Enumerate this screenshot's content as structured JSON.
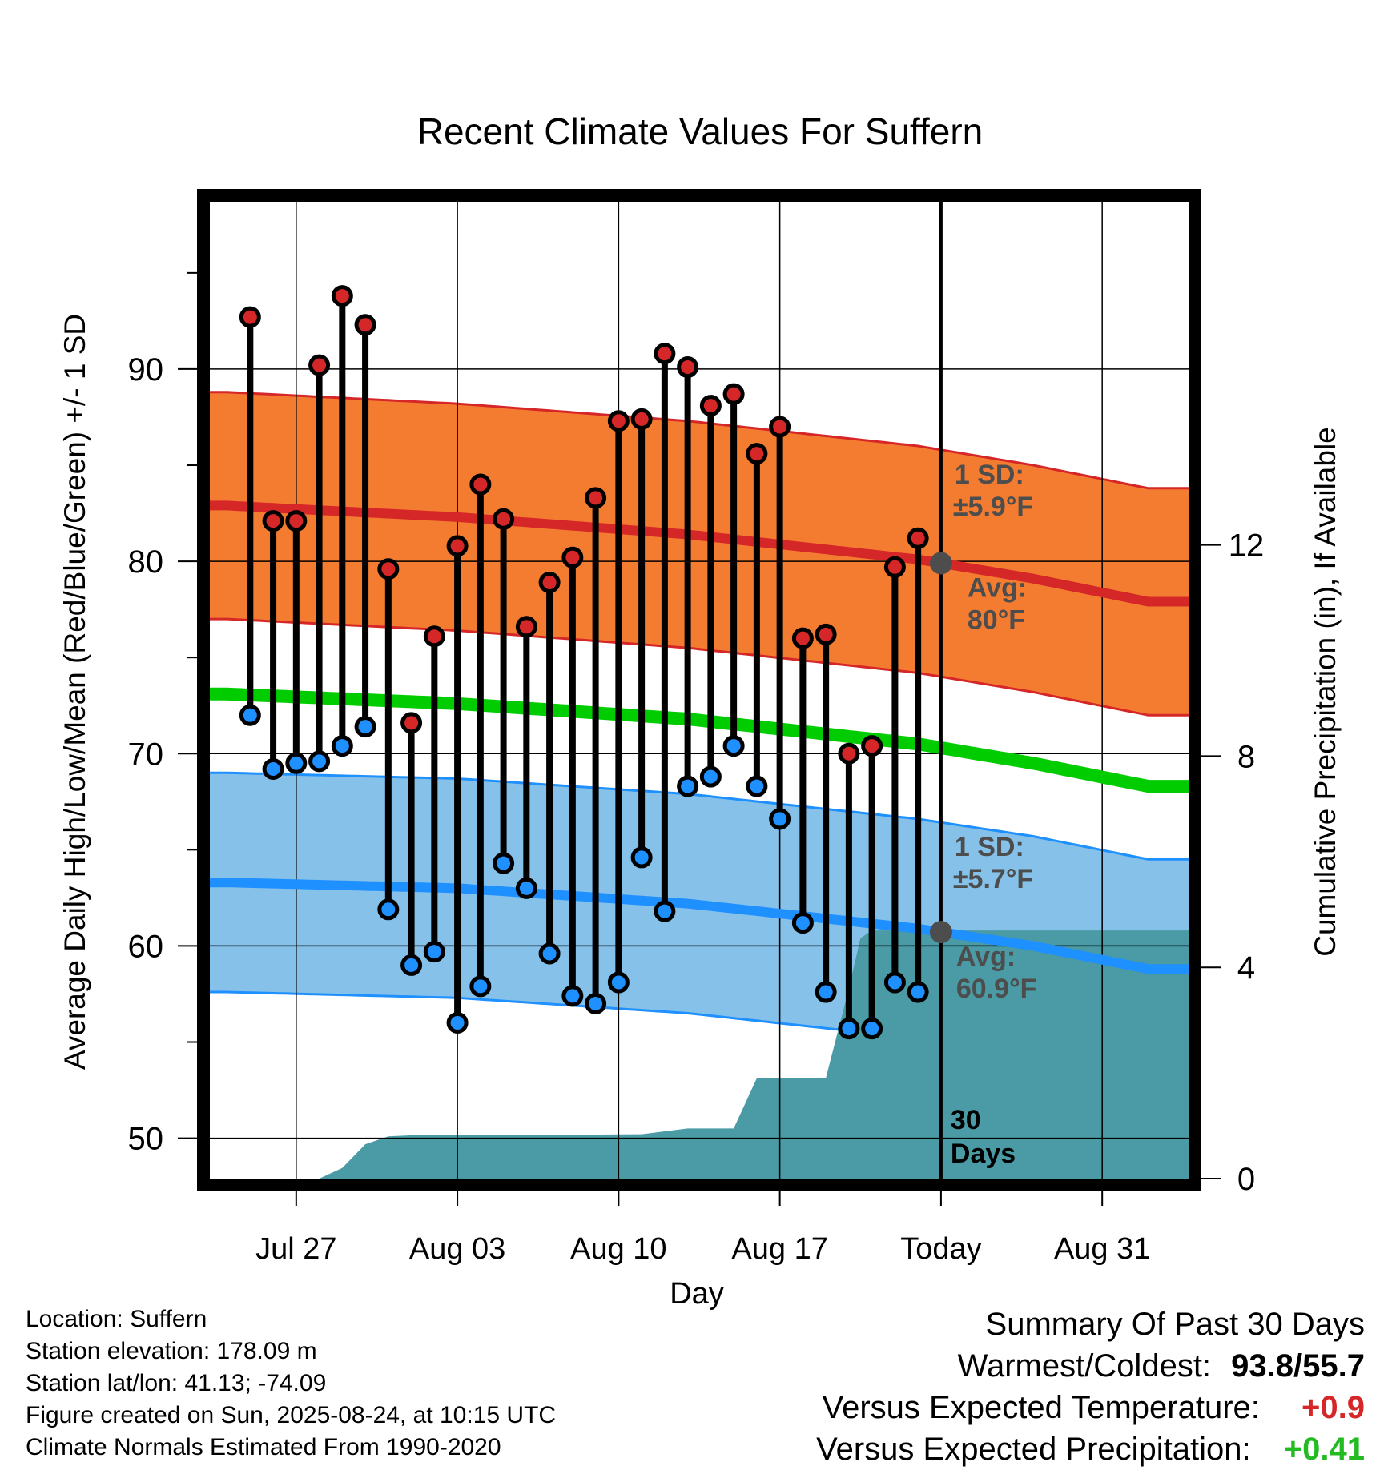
{
  "chart_data": {
    "type": "line",
    "title": "Recent Climate Values For Suffern",
    "xlabel": "Day",
    "ylabel_left": "Average Daily High/Low/Mean (Red/Blue/Green) +/- 1 SD",
    "ylabel_right": "Cumulative Precipitation (in), If Available",
    "x_ticks": [
      {
        "label": "Jul 27",
        "day": 3
      },
      {
        "label": "Aug 03",
        "day": 10
      },
      {
        "label": "Aug 10",
        "day": 17
      },
      {
        "label": "Aug 17",
        "day": 24
      },
      {
        "label": "Today",
        "day": 31
      },
      {
        "label": "Aug 31",
        "day": 38
      }
    ],
    "x_range": [
      -0.75,
      41.75
    ],
    "left_axis": {
      "ylim": [
        47.9,
        98.7
      ],
      "ticks": [
        50,
        60,
        70,
        80,
        90
      ]
    },
    "right_axis": {
      "ylim": [
        0,
        18.5
      ],
      "ticks": [
        0,
        4,
        8,
        12
      ]
    },
    "today_day": 31,
    "observed": {
      "days": [
        1,
        2,
        3,
        4,
        5,
        6,
        7,
        8,
        9,
        10,
        11,
        12,
        13,
        14,
        15,
        16,
        17,
        18,
        19,
        20,
        21,
        22,
        23,
        24,
        25,
        26,
        27,
        28,
        29,
        30
      ],
      "highs": [
        92.7,
        82.1,
        82.1,
        90.2,
        93.8,
        92.3,
        79.6,
        71.6,
        76.1,
        80.8,
        84.0,
        82.2,
        76.6,
        78.9,
        80.2,
        83.3,
        87.3,
        87.4,
        90.8,
        90.1,
        88.1,
        88.7,
        85.6,
        87.0,
        76.0,
        76.2,
        70.0,
        70.4,
        79.7,
        81.2
      ],
      "lows": [
        72.0,
        69.2,
        69.5,
        69.6,
        70.4,
        71.4,
        61.9,
        59.0,
        59.7,
        56.0,
        57.9,
        64.3,
        63.0,
        59.6,
        57.4,
        57.0,
        58.1,
        64.6,
        61.8,
        68.3,
        68.8,
        70.4,
        68.3,
        66.6,
        61.2,
        57.6,
        55.7,
        55.7,
        58.1,
        57.6
      ],
      "high_color": "#d62728",
      "low_color": "#1e90ff"
    },
    "normals": {
      "days": [
        0,
        10,
        20,
        30,
        35,
        40
      ],
      "avg_high": [
        82.9,
        82.3,
        81.4,
        80.1,
        79.1,
        77.9
      ],
      "avg_low": [
        63.3,
        63.0,
        62.2,
        60.9,
        60.0,
        58.8
      ],
      "avg_mean": [
        73.1,
        72.6,
        71.8,
        70.5,
        69.5,
        68.3
      ],
      "high_sd": 5.9,
      "low_sd": 5.7
    },
    "precip": {
      "days": [
        0,
        4,
        5,
        6,
        7,
        8,
        12,
        18,
        20,
        22,
        23,
        24,
        25,
        26,
        27,
        27.5,
        28,
        29,
        30,
        41.75
      ],
      "cumulative": [
        0,
        0,
        0.2,
        0.65,
        0.8,
        0.82,
        0.82,
        0.84,
        0.95,
        0.95,
        1.9,
        1.9,
        1.9,
        1.9,
        3.6,
        4.55,
        4.7,
        4.7,
        4.7,
        4.7
      ],
      "color": "#4a9ba5"
    },
    "colors": {
      "high_band": "#f47c30",
      "high_line": "#d62728",
      "low_band": "#85c1e9",
      "low_line": "#1e90ff",
      "mean_line": "#00cc00",
      "annotation": "#4d4d4d"
    },
    "annotations": {
      "high_sd_label": "1 SD:",
      "high_sd_value": "±5.9°F",
      "high_avg_label": "Avg:",
      "high_avg_value": "80°F",
      "low_sd_label": "1 SD:",
      "low_sd_value": "±5.7°F",
      "low_avg_label": "Avg:",
      "low_avg_value": "60.9°F",
      "period_number": "30",
      "period_unit": "Days"
    },
    "grid": true
  },
  "meta": {
    "location": "Location: Suffern",
    "elevation": "Station elevation: 178.09 m",
    "latlon": "Station lat/lon: 41.13; -74.09",
    "created": "Figure created on Sun, 2025-08-24, at 10:15 UTC",
    "normals_period": "Climate Normals Estimated From 1990-2020"
  },
  "summary": {
    "title": "Summary Of Past 30 Days",
    "warm_cold_label": "Warmest/Coldest:",
    "warm_cold_value": "93.8/55.7",
    "temp_label": "Versus Expected Temperature:",
    "temp_value": "+0.9",
    "temp_color": "#d62728",
    "precip_label": "Versus Expected Precipitation:",
    "precip_value": "+0.41",
    "precip_color": "#22bb22"
  }
}
